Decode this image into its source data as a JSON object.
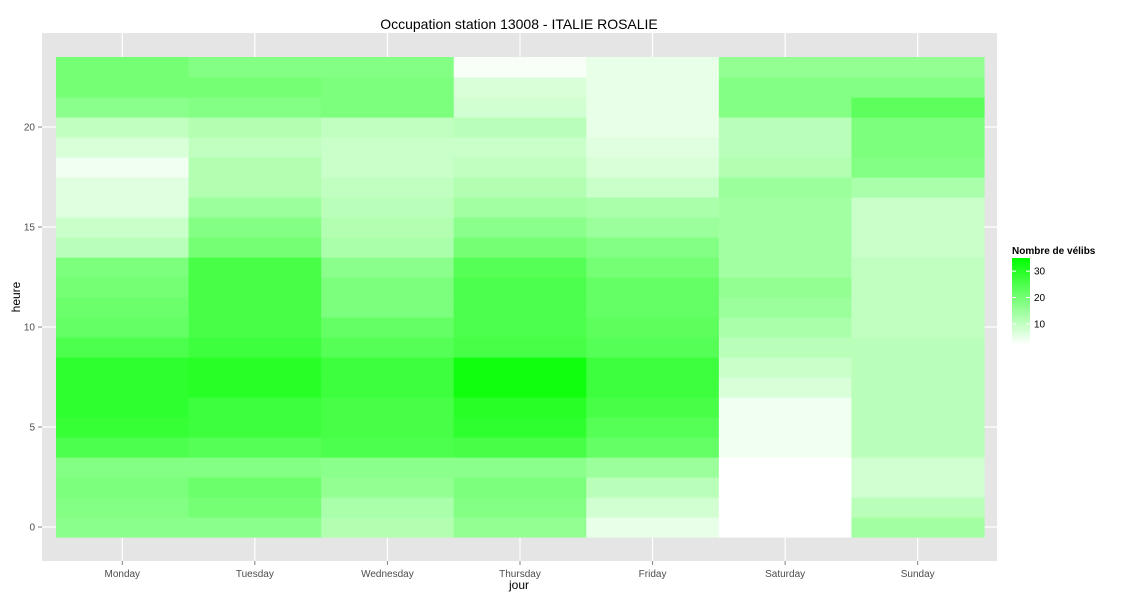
{
  "chart_data": {
    "type": "heatmap",
    "title": "Occupation station 13008 - ITALIE ROSALIE",
    "xlabel": "jour",
    "ylabel": "heure",
    "categories": [
      "Monday",
      "Tuesday",
      "Wednesday",
      "Thursday",
      "Friday",
      "Saturday",
      "Sunday"
    ],
    "hours": [
      0,
      1,
      2,
      3,
      4,
      5,
      6,
      7,
      8,
      9,
      10,
      11,
      12,
      13,
      14,
      15,
      16,
      17,
      18,
      19,
      20,
      21,
      22,
      23
    ],
    "ylim": [
      -0.5,
      23.5
    ],
    "yticks": [
      0,
      5,
      10,
      15,
      20
    ],
    "grid": true,
    "legend": {
      "title": "Nombre de vélibs",
      "placement": "right",
      "breaks": [
        10,
        20,
        30
      ],
      "range": [
        2,
        35
      ],
      "low_color": "#ffffff",
      "high_color": "#00ff00"
    },
    "values": [
      [
        17,
        17,
        12,
        16,
        5,
        1,
        14
      ],
      [
        18,
        20,
        13,
        18,
        8,
        1,
        11
      ],
      [
        19,
        21,
        16,
        19,
        11,
        2,
        8
      ],
      [
        18,
        18,
        17,
        17,
        15,
        2,
        8
      ],
      [
        25,
        24,
        25,
        26,
        22,
        4,
        11
      ],
      [
        28,
        27,
        26,
        29,
        24,
        4,
        11
      ],
      [
        29,
        27,
        26,
        30,
        26,
        4,
        11
      ],
      [
        29,
        30,
        27,
        33,
        27,
        7,
        11
      ],
      [
        29,
        30,
        27,
        33,
        27,
        9,
        11
      ],
      [
        25,
        27,
        24,
        26,
        24,
        11,
        11
      ],
      [
        22,
        26,
        22,
        25,
        23,
        13,
        10
      ],
      [
        21,
        26,
        19,
        25,
        22,
        15,
        10
      ],
      [
        20,
        26,
        19,
        25,
        22,
        16,
        10
      ],
      [
        19,
        26,
        17,
        24,
        20,
        14,
        10
      ],
      [
        11,
        20,
        13,
        20,
        18,
        14,
        9
      ],
      [
        9,
        18,
        12,
        17,
        15,
        14,
        9
      ],
      [
        6,
        15,
        11,
        14,
        13,
        14,
        9
      ],
      [
        6,
        12,
        10,
        12,
        9,
        15,
        13
      ],
      [
        4,
        12,
        9,
        10,
        7,
        12,
        18
      ],
      [
        7,
        10,
        9,
        9,
        6,
        11,
        19
      ],
      [
        10,
        12,
        10,
        11,
        5,
        11,
        19
      ],
      [
        17,
        18,
        19,
        8,
        5,
        18,
        23
      ],
      [
        20,
        20,
        19,
        7,
        5,
        18,
        18
      ],
      [
        20,
        18,
        18,
        3,
        5,
        16,
        16
      ]
    ]
  }
}
